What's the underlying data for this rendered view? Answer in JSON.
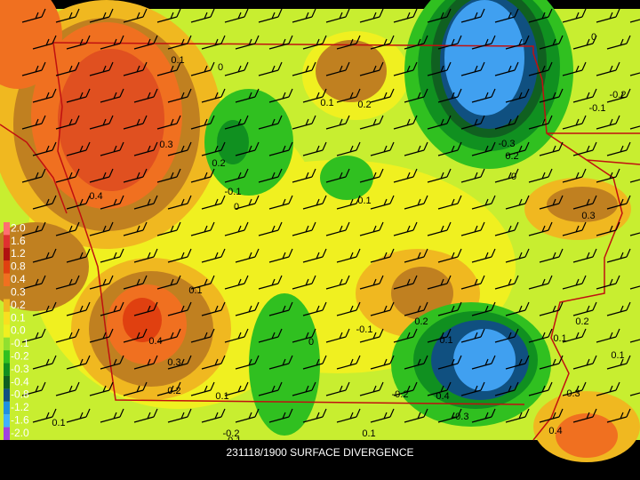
{
  "title": "231118/1900 SURFACE DIVERGENCE",
  "legend": [
    {
      "label": "2.0",
      "color": "#ff7070"
    },
    {
      "label": "1.6",
      "color": "#e03030"
    },
    {
      "label": "1.2",
      "color": "#b01010"
    },
    {
      "label": "0.8",
      "color": "#e04010"
    },
    {
      "label": "0.4",
      "color": "#f07020"
    },
    {
      "label": "0.3",
      "color": "#c08020"
    },
    {
      "label": "0.2",
      "color": "#f0b820"
    },
    {
      "label": "0.1",
      "color": "#f8e020"
    },
    {
      "label": "0.0",
      "color": "#f0f020"
    },
    {
      "label": "-0.1",
      "color": "#90e030"
    },
    {
      "label": "-0.2",
      "color": "#30c020"
    },
    {
      "label": "-0.3",
      "color": "#109020"
    },
    {
      "label": "-0.4",
      "color": "#106020"
    },
    {
      "label": "-0.8",
      "color": "#105080"
    },
    {
      "label": "-1.2",
      "color": "#2090e0"
    },
    {
      "label": "-1.6",
      "color": "#40b0ff"
    },
    {
      "label": "-2.0",
      "color": "#a040e0"
    }
  ],
  "contour_labels": [
    "0.1",
    "0",
    "0.1",
    "0.2",
    "0.3",
    "0.4",
    "0.2",
    "-0.1",
    "0",
    "0.1",
    "0.1",
    "0.4",
    "0.3",
    "0.2",
    "0.1",
    "0",
    "-0.1",
    "0.2",
    "0.1",
    "-0.2",
    "0.4",
    "-0.3",
    "0.1",
    "0.3",
    "0.2",
    "0.1",
    "-0.1",
    "-0.2",
    "-0.3",
    "0",
    "0.2",
    "0.1",
    "0.3",
    "0.4",
    "-0.1",
    "0",
    "-0.2",
    "0.1"
  ]
}
